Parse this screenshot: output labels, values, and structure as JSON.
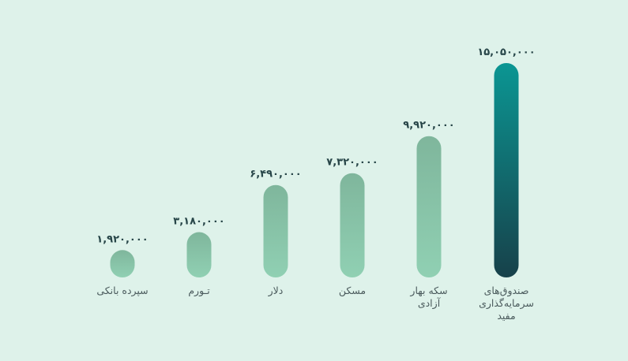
{
  "chart_data": {
    "type": "bar",
    "title": "",
    "xlabel": "",
    "ylabel": "",
    "ylim": [
      0,
      15050000
    ],
    "grid": false,
    "legend": "none",
    "categories": [
      [
        "سپرده بانکی"
      ],
      [
        "تـورم"
      ],
      [
        "دلار"
      ],
      [
        "مسکن"
      ],
      [
        "سکه بهار",
        "آزادی"
      ],
      [
        "صندوق‌های",
        "سرمایه‌گذاری",
        "مفید"
      ]
    ],
    "values": [
      1920000,
      3180000,
      6490000,
      7320000,
      9920000,
      15050000
    ],
    "value_labels": [
      "۱,۹۲۰,۰۰۰",
      "۳,۱۸۰,۰۰۰",
      "۶,۴۹۰,۰۰۰",
      "۷,۳۲۰,۰۰۰",
      "۹,۹۲۰,۰۰۰",
      "۱۵,۰۵۰,۰۰۰"
    ],
    "highlight_index": 5,
    "colors": {
      "background": "#def2ea",
      "bar_top": "#7fb69c",
      "bar_bottom": "#90d0b3",
      "highlight_top": "#0b9693",
      "highlight_bottom": "#17414a",
      "value_text": "#274548",
      "category_text": "#4a5a5c"
    }
  }
}
